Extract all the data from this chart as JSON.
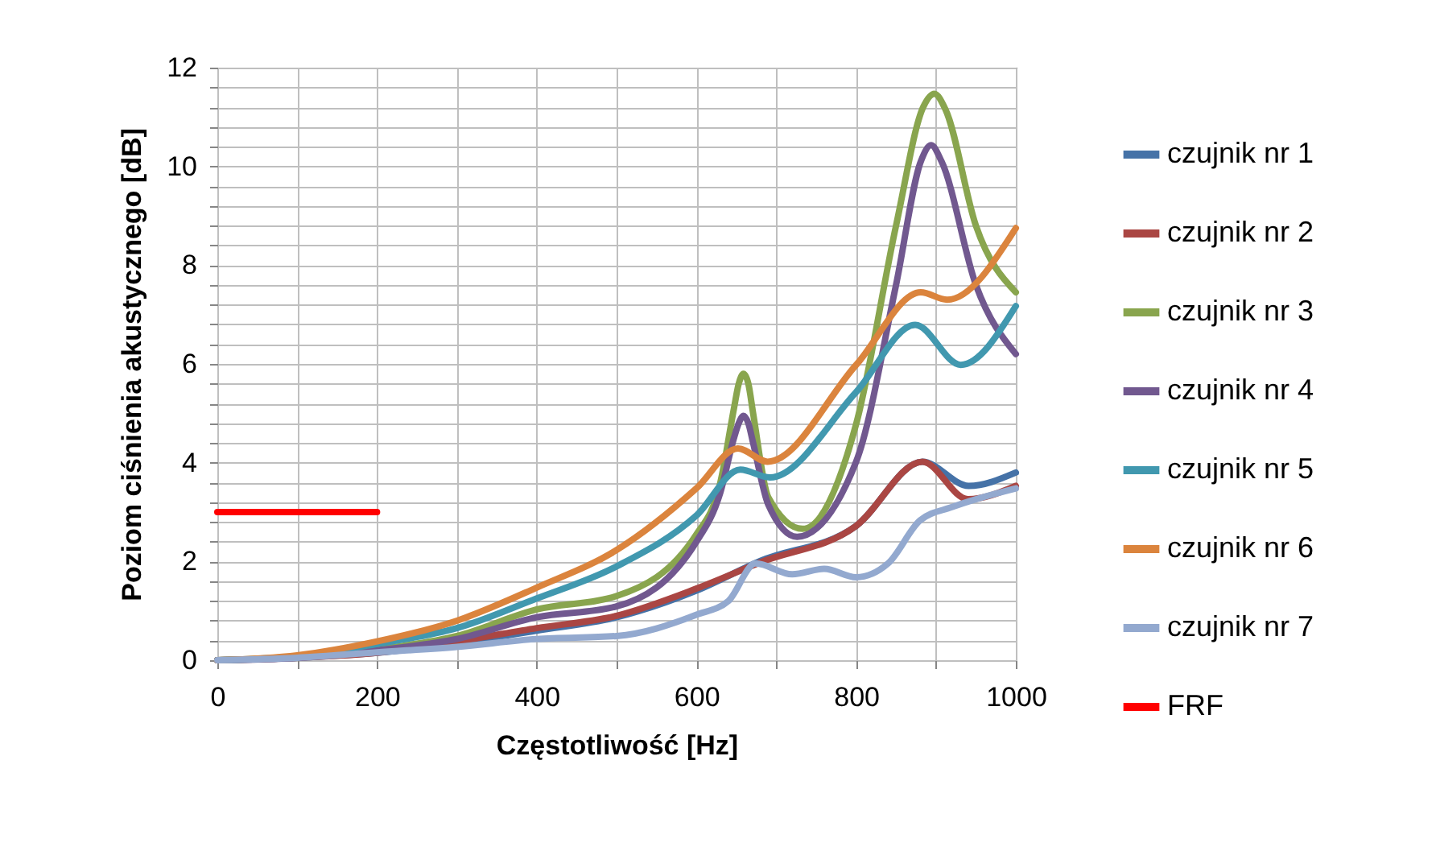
{
  "chart_data": {
    "type": "line",
    "xlabel": "Częstotliwość [Hz]",
    "ylabel": "Poziom ciśnienia akustycznego [dB]",
    "xlim": [
      0,
      1000
    ],
    "xticks": [
      0,
      {
        "value": 100,
        "label": null
      },
      200,
      {
        "value": 300,
        "label": null
      },
      400,
      {
        "value": 500,
        "label": null
      },
      600,
      {
        "value": 700,
        "label": null
      },
      800,
      {
        "value": 900,
        "label": null
      },
      1000
    ],
    "ylim": [
      0,
      12
    ],
    "yticks": [
      0,
      {
        "value": 0.4,
        "label": null
      },
      {
        "value": 0.8,
        "label": null
      },
      {
        "value": 1.2,
        "label": null
      },
      {
        "value": 1.6,
        "label": null
      },
      2,
      {
        "value": 2.4,
        "label": null
      },
      {
        "value": 2.8,
        "label": null
      },
      {
        "value": 3.2,
        "label": null
      },
      {
        "value": 3.6,
        "label": null
      },
      4,
      {
        "value": 4.4,
        "label": null
      },
      {
        "value": 4.8,
        "label": null
      },
      {
        "value": 5.2,
        "label": null
      },
      {
        "value": 5.6,
        "label": null
      },
      6,
      {
        "value": 6.4,
        "label": null
      },
      {
        "value": 6.8,
        "label": null
      },
      {
        "value": 7.2,
        "label": null
      },
      {
        "value": 7.6,
        "label": null
      },
      8,
      {
        "value": 8.4,
        "label": null
      },
      {
        "value": 8.8,
        "label": null
      },
      {
        "value": 9.2,
        "label": null
      },
      {
        "value": 9.6,
        "label": null
      },
      10,
      {
        "value": 10.4,
        "label": null
      },
      {
        "value": 10.8,
        "label": null
      },
      {
        "value": 11.2,
        "label": null
      },
      {
        "value": 11.6,
        "label": null
      },
      12
    ],
    "grid": true,
    "legend": "right",
    "line_style": "solid",
    "marker": "none",
    "series": [
      {
        "name": "czujnik nr 1",
        "color": "#4572a7",
        "x": [
          0,
          100,
          200,
          300,
          400,
          500,
          600,
          680,
          800,
          883,
          941,
          1000
        ],
        "values": [
          0,
          0.05,
          0.15,
          0.35,
          0.6,
          0.87,
          1.41,
          2.01,
          2.72,
          4.02,
          3.53,
          3.8
        ]
      },
      {
        "name": "czujnik nr 2",
        "color": "#aa4643",
        "x": [
          0,
          100,
          200,
          300,
          400,
          500,
          600,
          680,
          800,
          883,
          940,
          1000
        ],
        "values": [
          0,
          0.05,
          0.15,
          0.38,
          0.65,
          0.9,
          1.45,
          1.98,
          2.72,
          4.02,
          3.26,
          3.53
        ]
      },
      {
        "name": "czujnik nr 3",
        "color": "#89a54e",
        "x": [
          0,
          100,
          200,
          300,
          400,
          500,
          600,
          630,
          647,
          653,
          659,
          665,
          671,
          690,
          733,
          800,
          850,
          884,
          898,
          912,
          950,
          1000
        ],
        "values": [
          0,
          0.06,
          0.22,
          0.49,
          1.03,
          1.3,
          2.55,
          3.6,
          5.1,
          5.6,
          5.8,
          5.6,
          5.0,
          3.3,
          2.66,
          4.78,
          8.8,
          11.2,
          11.47,
          11.15,
          8.8,
          7.45
        ]
      },
      {
        "name": "czujnik nr 4",
        "color": "#71588f",
        "x": [
          0,
          100,
          200,
          300,
          400,
          500,
          600,
          630,
          647,
          653,
          659,
          665,
          671,
          690,
          726,
          800,
          850,
          881,
          894,
          907,
          950,
          1000
        ],
        "values": [
          0,
          0.05,
          0.2,
          0.43,
          0.87,
          1.09,
          2.4,
          3.4,
          4.5,
          4.8,
          4.95,
          4.8,
          4.4,
          3.15,
          2.5,
          4.02,
          7.6,
          10.1,
          10.43,
          10.1,
          7.6,
          6.2
        ]
      },
      {
        "name": "czujnik nr 5",
        "color": "#4198af",
        "x": [
          0,
          100,
          200,
          300,
          400,
          500,
          600,
          655,
          692,
          800,
          874,
          931,
          1000
        ],
        "values": [
          0,
          0.08,
          0.33,
          0.65,
          1.25,
          1.9,
          2.93,
          3.86,
          3.7,
          5.43,
          6.79,
          5.98,
          7.17
        ]
      },
      {
        "name": "czujnik nr 6",
        "color": "#db843d",
        "x": [
          0,
          100,
          200,
          300,
          400,
          500,
          600,
          652,
          689,
          800,
          881,
          914,
          1000
        ],
        "values": [
          0,
          0.1,
          0.38,
          0.8,
          1.47,
          2.23,
          3.48,
          4.29,
          4.02,
          5.98,
          7.45,
          7.3,
          8.75
        ]
      },
      {
        "name": "czujnik nr 7",
        "color": "#93a9cf",
        "x": [
          0,
          100,
          200,
          300,
          400,
          500,
          600,
          640,
          674,
          720,
          760,
          800,
          840,
          880,
          920,
          1000
        ],
        "values": [
          0,
          0.05,
          0.16,
          0.27,
          0.43,
          0.49,
          0.92,
          1.2,
          1.96,
          1.74,
          1.85,
          1.68,
          1.96,
          2.83,
          3.1,
          3.48
        ]
      },
      {
        "name": "FRF",
        "color": "#ff0000",
        "x": [
          0,
          200
        ],
        "values": [
          3,
          3
        ]
      }
    ]
  }
}
